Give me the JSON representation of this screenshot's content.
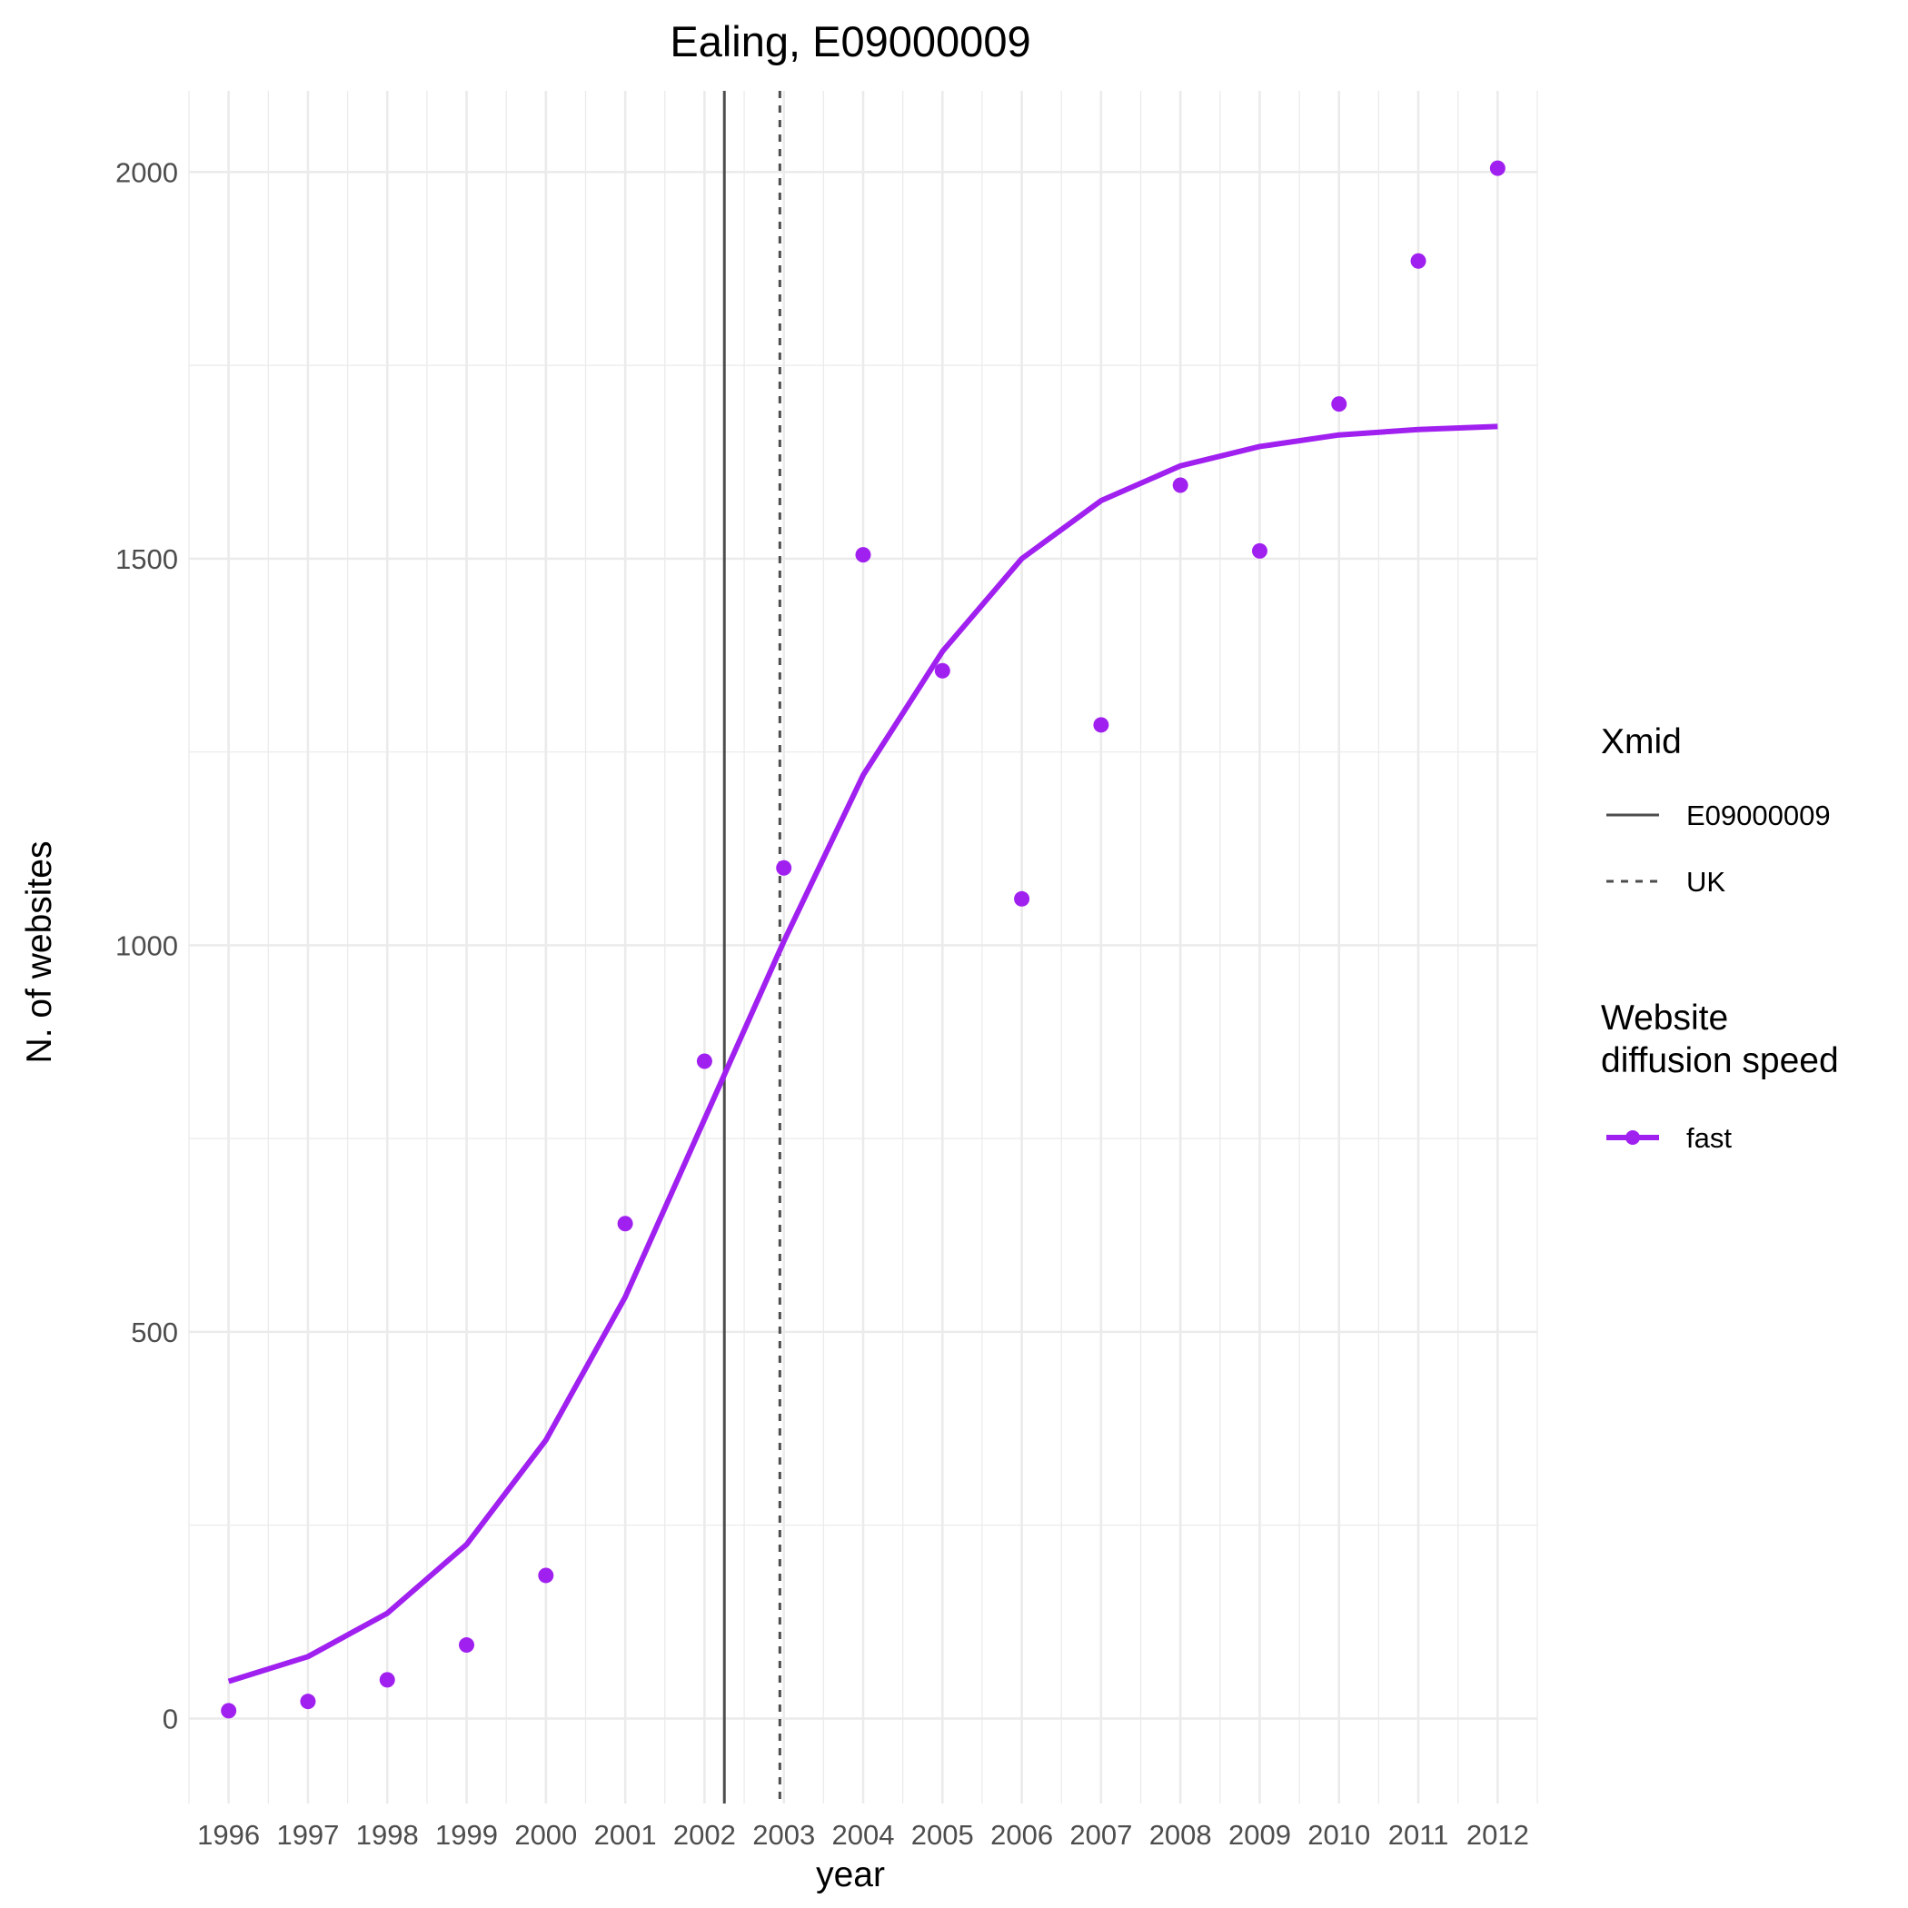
{
  "chart_data": {
    "type": "line",
    "title": "Ealing, E09000009",
    "xlabel": "year",
    "ylabel": "N. of websites",
    "x": [
      1996,
      1997,
      1998,
      1999,
      2000,
      2001,
      2002,
      2003,
      2004,
      2005,
      2006,
      2007,
      2008,
      2009,
      2010,
      2011,
      2012
    ],
    "xlim": [
      1995.5,
      2012.5
    ],
    "ylim": [
      -110,
      2105
    ],
    "yticks": [
      0,
      500,
      1000,
      1500,
      2000
    ],
    "grid": true,
    "series": [
      {
        "name": "fast",
        "kind": "points",
        "color": "#a020f0",
        "values": [
          10,
          22,
          50,
          95,
          185,
          640,
          850,
          1100,
          1505,
          1355,
          1060,
          1285,
          1595,
          1510,
          1700,
          1885,
          2005
        ]
      },
      {
        "name": "fast",
        "kind": "fitted-line",
        "color": "#a020f0",
        "values": [
          48,
          80,
          136,
          225,
          360,
          545,
          775,
          1005,
          1220,
          1380,
          1500,
          1575,
          1620,
          1645,
          1660,
          1667,
          1671
        ]
      }
    ],
    "reference_lines": [
      {
        "name": "E09000009",
        "x": 2002.25,
        "style": "solid",
        "color": "#4d4d4d"
      },
      {
        "name": "UK",
        "x": 2002.95,
        "style": "dashed",
        "color": "#4d4d4d"
      }
    ],
    "legends": [
      {
        "title": "Xmid",
        "entries": [
          {
            "label": "E09000009",
            "style": "solid"
          },
          {
            "label": "UK",
            "style": "dashed"
          }
        ]
      },
      {
        "title_lines": [
          "Website",
          "diffusion speed"
        ],
        "entries": [
          {
            "label": "fast",
            "color": "#a020f0"
          }
        ]
      }
    ],
    "legend_position": "right"
  }
}
